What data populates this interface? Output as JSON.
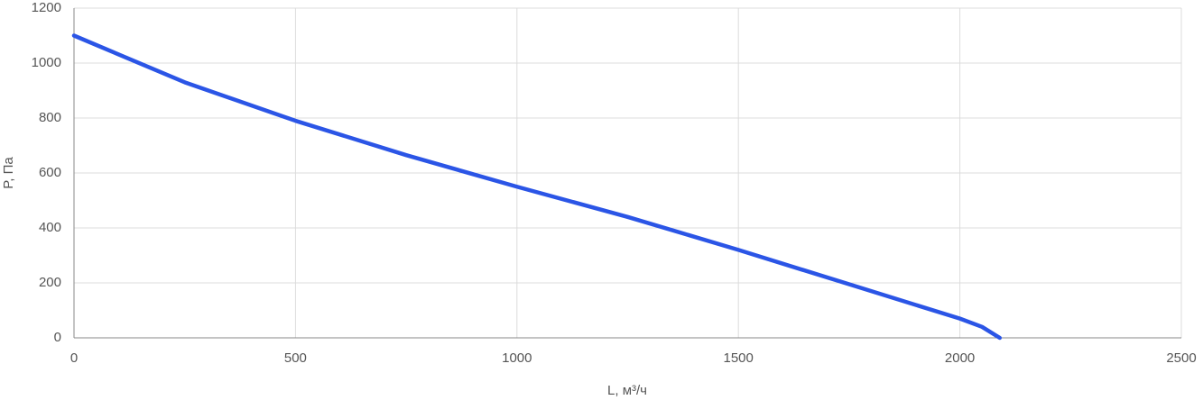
{
  "chart_data": {
    "type": "line",
    "x_label": "L, м³/ч",
    "y_label": "P, Па",
    "x": [
      0,
      250,
      500,
      750,
      1000,
      1250,
      1500,
      1750,
      2000,
      2050,
      2090
    ],
    "series": [
      {
        "color": "#2b55e6",
        "values": [
          1100,
          930,
          790,
          665,
          550,
          440,
          320,
          195,
          70,
          40,
          0
        ]
      }
    ],
    "xlim": [
      0,
      2500
    ],
    "xticks": [
      0,
      500,
      1000,
      1500,
      2000,
      2500
    ],
    "ylim": [
      0,
      1200
    ],
    "yticks": [
      0,
      200,
      400,
      600,
      800,
      1000,
      1200
    ],
    "grid": true
  }
}
